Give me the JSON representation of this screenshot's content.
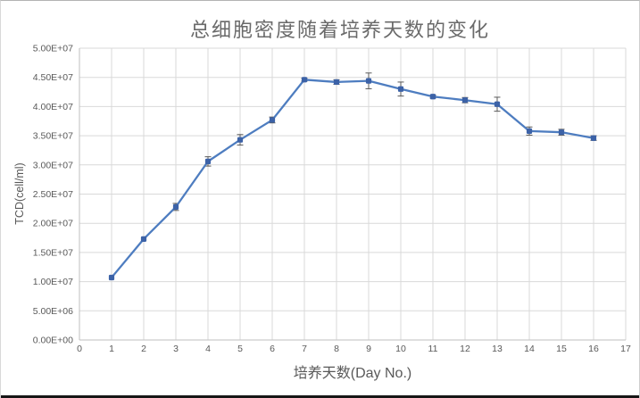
{
  "window": {
    "background": "#ffffff",
    "top_border_color": "#b3b3b3",
    "side_border_color": "#d9d9d9",
    "bottom_bar_color": "#161616"
  },
  "chart_data": {
    "type": "line",
    "title": "总细胞密度随着培养天数的变化",
    "xlabel": "培养天数(Day No.)",
    "ylabel": "TCD(cell/ml)",
    "x": [
      1,
      2,
      3,
      4,
      5,
      6,
      7,
      8,
      9,
      10,
      11,
      12,
      13,
      14,
      15,
      16
    ],
    "series": [
      {
        "name": "TCD",
        "values": [
          10700000,
          17300000,
          22800000,
          30600000,
          34300000,
          37700000,
          44600000,
          44200000,
          44400000,
          43000000,
          41700000,
          41100000,
          40400000,
          35800000,
          35600000,
          34600000
        ],
        "error_bars_plus_minus": [
          0,
          0,
          600000,
          800000,
          900000,
          500000,
          250000,
          400000,
          1350000,
          1200000,
          250000,
          450000,
          1200000,
          700000,
          500000,
          400000
        ]
      }
    ],
    "xlim": [
      0,
      17
    ],
    "ylim": [
      0,
      50000000
    ],
    "x_tick_labels": [
      "0",
      "1",
      "2",
      "3",
      "4",
      "5",
      "6",
      "7",
      "8",
      "9",
      "10",
      "11",
      "12",
      "13",
      "14",
      "15",
      "16",
      "17"
    ],
    "y_tick_labels": [
      "0.00E+00",
      "5.00E+06",
      "1.00E+07",
      "1.50E+07",
      "2.00E+07",
      "2.50E+07",
      "3.00E+07",
      "3.50E+07",
      "4.00E+07",
      "4.50E+07",
      "5.00E+07"
    ],
    "grid": true,
    "legend_position": "none",
    "colors": {
      "line": "#4E7DC0",
      "marker": "#3C62A7",
      "error_bar": "#595959",
      "gridline": "#D9D9D9",
      "axis_line": "#BFBFBF",
      "tick_text": "#595959",
      "title_text": "#6A6A6A"
    }
  }
}
